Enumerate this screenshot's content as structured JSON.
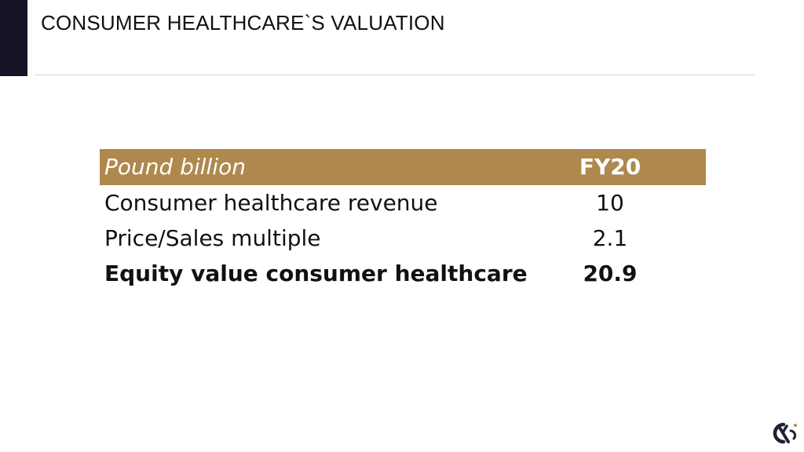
{
  "slide": {
    "title": "CONSUMER HEALTHCARE`S VALUATION",
    "accent_color": "#ae884d",
    "corner_color": "#141426"
  },
  "table": {
    "header": {
      "label": "Pound billion",
      "value": "FY20"
    },
    "rows": [
      {
        "label": "Consumer healthcare revenue",
        "value": "10"
      },
      {
        "label": "Price/Sales multiple",
        "value": "2.1"
      },
      {
        "label": "Equity value consumer healthcare",
        "value": "20.9"
      }
    ]
  },
  "logo": {
    "icon": "company-logo-icon"
  }
}
